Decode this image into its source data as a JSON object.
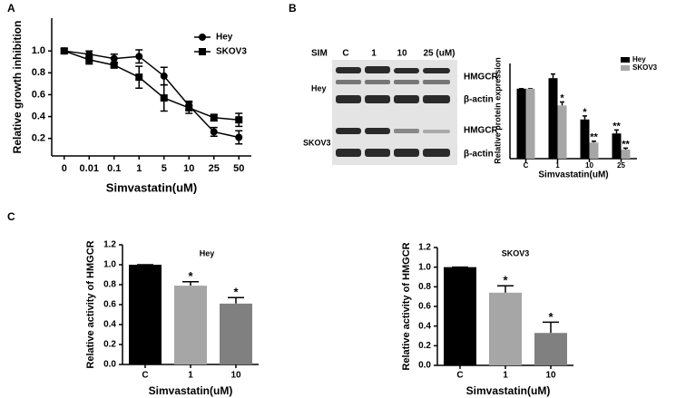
{
  "panel_labels": [
    "A",
    "B",
    "C"
  ],
  "blot": {
    "treatment": "SIM",
    "lanes": [
      "C",
      "1",
      "10",
      "25 (uM)"
    ],
    "cell_lines": [
      "Hey",
      "SKOV3"
    ],
    "proteins": [
      "HMGCR",
      "β-actin",
      "HMGCR",
      "β-actin"
    ]
  },
  "chart_data": [
    {
      "type": "line",
      "ylabel": "Relative growth inhibition",
      "xlabel": "Simvastatin(uM)",
      "categories": [
        "0",
        "0.01",
        "0.1",
        "1",
        "5",
        "10",
        "25",
        "50"
      ],
      "ylim": [
        0.04,
        1.3
      ],
      "yticks": [
        0.2,
        0.4,
        0.6,
        0.8,
        {
          "value": 1,
          "label": "1.0"
        }
      ],
      "series": [
        {
          "name": "Hey",
          "color": "#000000",
          "marker": "circle",
          "values": [
            1.0,
            0.97,
            0.93,
            0.95,
            0.77,
            0.5,
            0.26,
            0.21
          ],
          "errors": [
            0.02,
            0.03,
            0.04,
            0.06,
            0.08,
            0.04,
            0.04,
            0.06
          ]
        },
        {
          "name": "SKOV3",
          "color": "#000000",
          "marker": "square",
          "values": [
            1.0,
            0.92,
            0.87,
            0.76,
            0.57,
            0.48,
            0.39,
            0.37
          ],
          "errors": [
            0.02,
            0.04,
            0.02,
            0.1,
            0.12,
            0.05,
            0.03,
            0.06
          ]
        }
      ]
    },
    {
      "type": "bar",
      "ylabel": "Relative protein expression",
      "xlabel": "Simvastatin(uM)",
      "categories": [
        "C",
        "1",
        "10",
        "25"
      ],
      "ylim": [
        0,
        1.36
      ],
      "series": [
        {
          "name": "Hey",
          "color": "#000000",
          "values": [
            1.0,
            1.15,
            0.56,
            0.36
          ],
          "errors": [
            0,
            0.06,
            0.05,
            0.05
          ],
          "significance": [
            null,
            null,
            "*",
            "**"
          ]
        },
        {
          "name": "SKOV3",
          "color": "#a6a6a6",
          "values": [
            1.0,
            0.76,
            0.23,
            0.13
          ],
          "errors": [
            0,
            0.05,
            0.02,
            0.02
          ],
          "significance": [
            null,
            "*",
            "**",
            "**"
          ]
        }
      ]
    },
    {
      "type": "bar",
      "title": "Hey",
      "ylabel": "Relative activity of  HMGCR",
      "xlabel": "Simvastatin(uM)",
      "categories": [
        "C",
        "1",
        "10"
      ],
      "ylim": [
        0,
        1.2
      ],
      "yticks": [
        {
          "value": 0,
          "label": "0.0"
        },
        0.2,
        0.4,
        0.6,
        0.8,
        {
          "value": 1,
          "label": "1.0"
        },
        1.2
      ],
      "series": [
        {
          "colors": [
            "#000000",
            "#a6a6a6",
            "#808080"
          ],
          "values": [
            1.0,
            0.79,
            0.61
          ],
          "errors": [
            0,
            0.04,
            0.06
          ],
          "significance": [
            null,
            "*",
            "*"
          ]
        }
      ]
    },
    {
      "type": "bar",
      "title": "SKOV3",
      "ylabel": "Relative activity of HMGCR",
      "xlabel": "Simvastatin(uM)",
      "categories": [
        "C",
        "1",
        "10"
      ],
      "ylim": [
        0,
        1.2
      ],
      "yticks": [
        {
          "value": 0,
          "label": "0.0"
        },
        0.2,
        0.4,
        0.6,
        0.8,
        {
          "value": 1,
          "label": "1.0"
        },
        1.2
      ],
      "series": [
        {
          "colors": [
            "#000000",
            "#a6a6a6",
            "#808080"
          ],
          "values": [
            1.0,
            0.74,
            0.33
          ],
          "errors": [
            0,
            0.07,
            0.11
          ],
          "significance": [
            null,
            "*",
            "*"
          ]
        }
      ]
    }
  ]
}
